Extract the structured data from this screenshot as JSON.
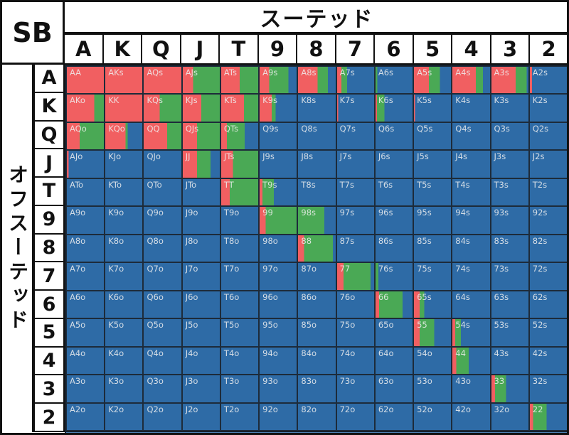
{
  "header": {
    "corner_label": "SB",
    "suited_label": "スーテッド",
    "offsuit_label": "オフスーテッド",
    "ranks": [
      "A",
      "K",
      "Q",
      "J",
      "T",
      "9",
      "8",
      "7",
      "6",
      "5",
      "4",
      "3",
      "2"
    ]
  },
  "colors": {
    "red_hex": "#f15f61",
    "green_hex": "#4aa955",
    "blue_hex": "#2e6ba6",
    "partial_row_hex": "#4e82b4",
    "cell_text_hex": "#f0f0f0",
    "border_hex": "#1d2b3a"
  },
  "chart_data": {
    "type": "heatmap",
    "title": "SB スーテッド / オフスーテッド",
    "columns": [
      "A",
      "K",
      "Q",
      "J",
      "T",
      "9",
      "8",
      "7",
      "6",
      "5",
      "4",
      "3",
      "2"
    ],
    "row_labels": [
      "A",
      "K",
      "Q",
      "J",
      "T",
      "9",
      "8",
      "7",
      "6",
      "5",
      "4",
      "3",
      "2"
    ],
    "legend": {
      "red": "#f15f61",
      "green": "#4aa955",
      "blue": "#2e6ba6"
    },
    "cell_value_format": [
      "hand_label",
      "red_fraction",
      "green_fraction",
      "blue_fraction"
    ],
    "cells": [
      [
        [
          "AA",
          1,
          0,
          0
        ],
        [
          "AKs",
          1,
          0,
          0
        ],
        [
          "AQs",
          1,
          0,
          0
        ],
        [
          "AJs",
          0.28,
          0.72,
          0
        ],
        [
          "ATs",
          0.5,
          0.5,
          0
        ],
        [
          "A9s",
          0.26,
          0.52,
          0.22
        ],
        [
          "A8s",
          0.52,
          0.27,
          0.21
        ],
        [
          "A7s",
          0.12,
          0.15,
          0.73
        ],
        [
          "A6s",
          0,
          0.05,
          0.95
        ],
        [
          "A5s",
          0.4,
          0.3,
          0.3
        ],
        [
          "A4s",
          0.62,
          0.19,
          0.19
        ],
        [
          "A3s",
          0.65,
          0.3,
          0.05
        ],
        [
          "A2s",
          0.06,
          0,
          0.94
        ]
      ],
      [
        [
          "AKo",
          0.74,
          0.26,
          0
        ],
        [
          "KK",
          1,
          0,
          0
        ],
        [
          "KQs",
          0.42,
          0.58,
          0
        ],
        [
          "KJs",
          0.5,
          0.5,
          0
        ],
        [
          "KTs",
          0.62,
          0.38,
          0
        ],
        [
          "K9s",
          0.33,
          0.1,
          0.57
        ],
        [
          "K8s",
          0,
          0,
          1
        ],
        [
          "K7s",
          0.03,
          0,
          0.97
        ],
        [
          "K6s",
          0.04,
          0.2,
          0.76
        ],
        [
          "K5s",
          0.03,
          0,
          0.97
        ],
        [
          "K4s",
          0,
          0,
          1
        ],
        [
          "K3s",
          0,
          0,
          1
        ],
        [
          "K2s",
          0,
          0,
          1
        ]
      ],
      [
        [
          "AQo",
          0.35,
          0.65,
          0
        ],
        [
          "KQo",
          0.55,
          0.06,
          0.39
        ],
        [
          "QQ",
          0.62,
          0.38,
          0
        ],
        [
          "QJs",
          0.38,
          0.62,
          0
        ],
        [
          "QTs",
          0.15,
          0.48,
          0.37
        ],
        [
          "Q9s",
          0,
          0,
          1
        ],
        [
          "Q8s",
          0,
          0,
          1
        ],
        [
          "Q7s",
          0,
          0,
          1
        ],
        [
          "Q6s",
          0,
          0,
          1
        ],
        [
          "Q5s",
          0,
          0,
          1
        ],
        [
          "Q4s",
          0,
          0,
          1
        ],
        [
          "Q3s",
          0,
          0,
          1
        ],
        [
          "Q2s",
          0,
          0,
          1
        ]
      ],
      [
        [
          "AJo",
          0.05,
          0,
          0.95
        ],
        [
          "KJo",
          0,
          0,
          1
        ],
        [
          "QJo",
          0,
          0,
          1
        ],
        [
          "JJ",
          0.38,
          0.37,
          0.25
        ],
        [
          "JTs",
          0.32,
          0.68,
          0
        ],
        [
          "J9s",
          0,
          0,
          1
        ],
        [
          "J8s",
          0,
          0,
          1
        ],
        [
          "J7s",
          0,
          0,
          1
        ],
        [
          "J6s",
          0,
          0,
          1
        ],
        [
          "J5s",
          0,
          0,
          1
        ],
        [
          "J4s",
          0,
          0,
          1
        ],
        [
          "J3s",
          0,
          0,
          1
        ],
        [
          "J2s",
          0,
          0,
          1
        ]
      ],
      [
        [
          "ATo",
          0,
          0,
          1
        ],
        [
          "KTo",
          0,
          0,
          1
        ],
        [
          "QTo",
          0,
          0,
          1
        ],
        [
          "JTo",
          0,
          0,
          1
        ],
        [
          "TT",
          0.23,
          0.77,
          0
        ],
        [
          "T9s",
          0.08,
          0.3,
          0.62
        ],
        [
          "T8s",
          0,
          0,
          1
        ],
        [
          "T7s",
          0,
          0,
          1
        ],
        [
          "T6s",
          0,
          0,
          1
        ],
        [
          "T5s",
          0,
          0,
          1
        ],
        [
          "T4s",
          0,
          0,
          1
        ],
        [
          "T3s",
          0,
          0,
          1
        ],
        [
          "T2s",
          0,
          0,
          1
        ]
      ],
      [
        [
          "A9o",
          0,
          0,
          1
        ],
        [
          "K9o",
          0,
          0,
          1
        ],
        [
          "Q9o",
          0,
          0,
          1
        ],
        [
          "J9o",
          0,
          0,
          1
        ],
        [
          "T9o",
          0,
          0,
          1
        ],
        [
          "99",
          0.16,
          0.84,
          0
        ],
        [
          "98s",
          0,
          0.7,
          0.3
        ],
        [
          "97s",
          0,
          0,
          1
        ],
        [
          "96s",
          0,
          0,
          1
        ],
        [
          "95s",
          0,
          0,
          1
        ],
        [
          "94s",
          0,
          0,
          1
        ],
        [
          "93s",
          0,
          0,
          1
        ],
        [
          "92s",
          0,
          0,
          1
        ]
      ],
      [
        [
          "A8o",
          0,
          0,
          1
        ],
        [
          "K8o",
          0,
          0,
          1
        ],
        [
          "Q8o",
          0,
          0,
          1
        ],
        [
          "J8o",
          0,
          0,
          1
        ],
        [
          "T8o",
          0,
          0,
          1
        ],
        [
          "98o",
          0,
          0,
          1
        ],
        [
          "88",
          0.16,
          0.76,
          0.08
        ],
        [
          "87s",
          0,
          0,
          1
        ],
        [
          "86s",
          0,
          0,
          1
        ],
        [
          "85s",
          0,
          0,
          1
        ],
        [
          "84s",
          0,
          0,
          1
        ],
        [
          "83s",
          0,
          0,
          1
        ],
        [
          "82s",
          0,
          0,
          1
        ]
      ],
      [
        [
          "A7o",
          0,
          0,
          1
        ],
        [
          "K7o",
          0,
          0,
          1
        ],
        [
          "Q7o",
          0,
          0,
          1
        ],
        [
          "J7o",
          0,
          0,
          1
        ],
        [
          "T7o",
          0,
          0,
          1
        ],
        [
          "97o",
          0,
          0,
          1
        ],
        [
          "87o",
          0,
          0,
          1
        ],
        [
          "77",
          0.17,
          0.73,
          0.1
        ],
        [
          "76s",
          0,
          0.08,
          0.92
        ],
        [
          "75s",
          0,
          0,
          1
        ],
        [
          "74s",
          0,
          0,
          1
        ],
        [
          "73s",
          0,
          0,
          1
        ],
        [
          "72s",
          0,
          0,
          1
        ]
      ],
      [
        [
          "A6o",
          0,
          0,
          1
        ],
        [
          "K6o",
          0,
          0,
          1
        ],
        [
          "Q6o",
          0,
          0,
          1
        ],
        [
          "J6o",
          0,
          0,
          1
        ],
        [
          "T6o",
          0,
          0,
          1
        ],
        [
          "96o",
          0,
          0,
          1
        ],
        [
          "86o",
          0,
          0,
          1
        ],
        [
          "76o",
          0,
          0,
          1
        ],
        [
          "66",
          0.1,
          0.63,
          0.27
        ],
        [
          "65s",
          0.15,
          0.13,
          0.72
        ],
        [
          "64s",
          0,
          0,
          1
        ],
        [
          "63s",
          0,
          0,
          1
        ],
        [
          "62s",
          0,
          0,
          1
        ]
      ],
      [
        [
          "A5o",
          0,
          0,
          1
        ],
        [
          "K5o",
          0,
          0,
          1
        ],
        [
          "Q5o",
          0,
          0,
          1
        ],
        [
          "J5o",
          0,
          0,
          1
        ],
        [
          "T5o",
          0,
          0,
          1
        ],
        [
          "95o",
          0,
          0,
          1
        ],
        [
          "85o",
          0,
          0,
          1
        ],
        [
          "75o",
          0,
          0,
          1
        ],
        [
          "65o",
          0,
          0,
          1
        ],
        [
          "55",
          0.15,
          0.4,
          0.45
        ],
        [
          "54s",
          0.08,
          0.15,
          0.77
        ],
        [
          "53s",
          0,
          0,
          1
        ],
        [
          "52s",
          0,
          0,
          1
        ]
      ],
      [
        [
          "A4o",
          0,
          0,
          1
        ],
        [
          "K4o",
          0,
          0,
          1
        ],
        [
          "Q4o",
          0,
          0,
          1
        ],
        [
          "J4o",
          0,
          0,
          1
        ],
        [
          "T4o",
          0,
          0,
          1
        ],
        [
          "94o",
          0,
          0,
          1
        ],
        [
          "84o",
          0,
          0,
          1
        ],
        [
          "74o",
          0,
          0,
          1
        ],
        [
          "64o",
          0,
          0,
          1
        ],
        [
          "54o",
          0,
          0,
          1
        ],
        [
          "44",
          0.1,
          0.33,
          0.57
        ],
        [
          "43s",
          0,
          0,
          1
        ],
        [
          "42s",
          0,
          0,
          1
        ]
      ],
      [
        [
          "A3o",
          0,
          0,
          1
        ],
        [
          "K3o",
          0,
          0,
          1
        ],
        [
          "Q3o",
          0,
          0,
          1
        ],
        [
          "J3o",
          0,
          0,
          1
        ],
        [
          "T3o",
          0,
          0,
          1
        ],
        [
          "93o",
          0,
          0,
          1
        ],
        [
          "83o",
          0,
          0,
          1
        ],
        [
          "73o",
          0,
          0,
          1
        ],
        [
          "63o",
          0,
          0,
          1
        ],
        [
          "53o",
          0,
          0,
          1
        ],
        [
          "43o",
          0,
          0,
          1
        ],
        [
          "33",
          0.1,
          0.29,
          0.61
        ],
        [
          "32s",
          0,
          0,
          1
        ]
      ],
      [
        [
          "A2o",
          0,
          0,
          1
        ],
        [
          "K2o",
          0,
          0,
          1
        ],
        [
          "Q2o",
          0,
          0,
          1
        ],
        [
          "J2o",
          0,
          0,
          1
        ],
        [
          "T2o",
          0,
          0,
          1
        ],
        [
          "92o",
          0,
          0,
          1
        ],
        [
          "82o",
          0,
          0,
          1
        ],
        [
          "72o",
          0,
          0,
          1
        ],
        [
          "62o",
          0,
          0,
          1
        ],
        [
          "52o",
          0,
          0,
          1
        ],
        [
          "42o",
          0,
          0,
          1
        ],
        [
          "32o",
          0,
          0,
          1
        ],
        [
          "22",
          0.09,
          0.36,
          0.55
        ]
      ]
    ]
  }
}
